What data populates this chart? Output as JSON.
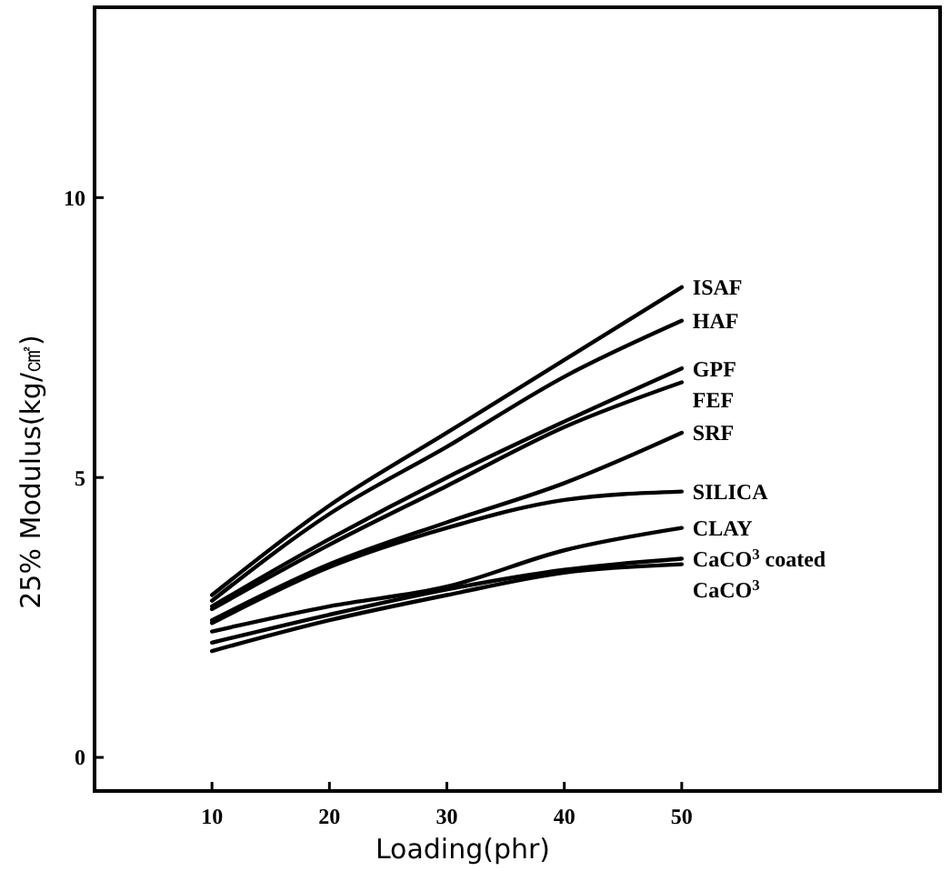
{
  "chart_data": {
    "type": "line",
    "xlabel": "Loading(phr)",
    "ylabel": "25% Modulus(kg/㎠)",
    "x": [
      10,
      20,
      30,
      40,
      50
    ],
    "xlim": [
      0,
      72
    ],
    "xticks": [
      10,
      20,
      30,
      40,
      50
    ],
    "ylim": [
      -0.6,
      13.4
    ],
    "yticks": [
      0,
      5,
      10
    ],
    "marker": "none",
    "line_style": "solid",
    "series": [
      {
        "name": "ISAF",
        "color": "#000000",
        "values": [
          2.9,
          4.5,
          5.8,
          7.1,
          8.4
        ]
      },
      {
        "name": "HAF",
        "color": "#000000",
        "values": [
          2.8,
          4.35,
          5.55,
          6.8,
          7.8
        ]
      },
      {
        "name": "GPF",
        "color": "#000000",
        "values": [
          2.7,
          3.9,
          5.0,
          6.0,
          6.95
        ]
      },
      {
        "name": "FEF",
        "color": "#000000",
        "values": [
          2.65,
          3.8,
          4.85,
          5.9,
          6.7
        ]
      },
      {
        "name": "SRF",
        "color": "#000000",
        "values": [
          2.45,
          3.45,
          4.2,
          4.9,
          5.8
        ]
      },
      {
        "name": "SILICA",
        "color": "#000000",
        "values": [
          2.4,
          3.4,
          4.1,
          4.6,
          4.75
        ]
      },
      {
        "name": "CLAY",
        "color": "#000000",
        "values": [
          2.25,
          2.7,
          3.05,
          3.7,
          4.1
        ]
      },
      {
        "name": "CaCO$^{3}$ coated",
        "color": "#000000",
        "values": [
          2.05,
          2.55,
          3.0,
          3.35,
          3.55
        ]
      },
      {
        "name": "CaCO$^{3}$",
        "color": "#000000",
        "values": [
          1.9,
          2.45,
          2.9,
          3.3,
          3.45
        ]
      }
    ]
  }
}
